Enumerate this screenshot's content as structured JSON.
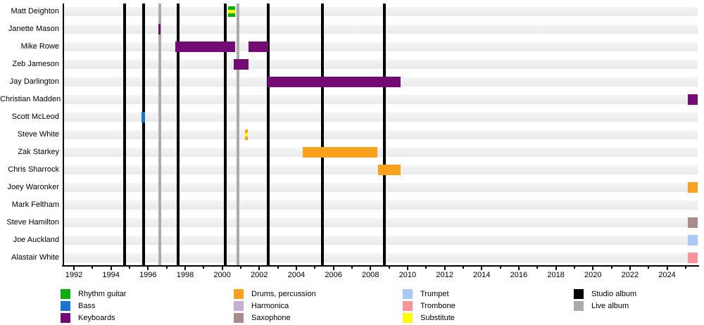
{
  "chart_data": {
    "type": "timeline",
    "description": "Band members timeline (gantt-style) showing each musician's tenure by instrument, with studio and live album release markers",
    "axis": {
      "start": 1991.43,
      "end": 2025.65
    },
    "x_tick_labels": [
      "1992",
      "1994",
      "1996",
      "1998",
      "2000",
      "2002",
      "2004",
      "2006",
      "2008",
      "2010",
      "2012",
      "2014",
      "2016",
      "2018",
      "2020",
      "2022",
      "2024"
    ],
    "members": [
      {
        "name": "Matt Deighton",
        "bars": [
          {
            "start": 2000.32,
            "end": 2000.7,
            "instrument": "rhythm_guitar",
            "substitute": true
          }
        ]
      },
      {
        "name": "Janette Mason",
        "bars": [
          {
            "start": 1996.56,
            "end": 1996.68,
            "instrument": "keyboards"
          }
        ]
      },
      {
        "name": "Mike Rowe",
        "bars": [
          {
            "start": 1997.45,
            "end": 2000.7,
            "instrument": "keyboards"
          },
          {
            "start": 2001.42,
            "end": 2002.48,
            "instrument": "keyboards"
          }
        ]
      },
      {
        "name": "Zeb Jameson",
        "bars": [
          {
            "start": 2000.63,
            "end": 2001.42,
            "instrument": "keyboards"
          }
        ]
      },
      {
        "name": "Jay Darlington",
        "bars": [
          {
            "start": 2002.45,
            "end": 2009.61,
            "instrument": "keyboards"
          }
        ]
      },
      {
        "name": "Christian Madden",
        "bars": [
          {
            "start": 2025.1,
            "end": 2025.65,
            "instrument": "keyboards"
          }
        ]
      },
      {
        "name": "Scott McLeod",
        "bars": [
          {
            "start": 1995.63,
            "end": 1995.83,
            "instrument": "bass"
          }
        ]
      },
      {
        "name": "Steve White",
        "bars": [
          {
            "start": 2001.22,
            "end": 2001.38,
            "instrument": "drums",
            "substitute": true
          }
        ]
      },
      {
        "name": "Zak Starkey",
        "bars": [
          {
            "start": 2004.33,
            "end": 2008.37,
            "instrument": "drums"
          }
        ]
      },
      {
        "name": "Chris Sharrock",
        "bars": [
          {
            "start": 2008.4,
            "end": 2009.61,
            "instrument": "drums"
          }
        ]
      },
      {
        "name": "Joey Waronker",
        "bars": [
          {
            "start": 2025.1,
            "end": 2025.65,
            "instrument": "drums"
          }
        ]
      },
      {
        "name": "Mark Feltham",
        "bars": []
      },
      {
        "name": "Steve Hamilton",
        "bars": [
          {
            "start": 2025.1,
            "end": 2025.65,
            "instrument": "saxophone"
          }
        ]
      },
      {
        "name": "Joe Auckland",
        "bars": [
          {
            "start": 2025.1,
            "end": 2025.65,
            "instrument": "trumpet"
          }
        ]
      },
      {
        "name": "Alastair White",
        "bars": [
          {
            "start": 2025.1,
            "end": 2025.65,
            "instrument": "trombone"
          }
        ]
      }
    ],
    "albums": {
      "studio": [
        1994.73,
        1995.76,
        1997.62,
        2000.16,
        2002.47,
        2005.4,
        2008.74
      ],
      "live": [
        1996.63,
        2000.84
      ]
    },
    "colors": {
      "rhythm_guitar": "#0CAD0C",
      "bass": "#1874CD",
      "keyboards": "#740B74",
      "drums": "#FAA21E",
      "harmonica": "#C8AED6",
      "saxophone": "#A98C8C",
      "trumpet": "#AAC9F5",
      "trombone": "#FB949A",
      "substitute": "#FFFF00",
      "studio_album": "#000000",
      "live_album": "#ABABAB"
    },
    "legend": {
      "position": "bottom",
      "columns": [
        {
          "items": [
            {
              "label": "Rhythm guitar",
              "color": "rhythm_guitar"
            },
            {
              "label": "Bass",
              "color": "bass"
            },
            {
              "label": "Keyboards",
              "color": "keyboards"
            }
          ]
        },
        {
          "items": [
            {
              "label": "Drums, percussion",
              "color": "drums"
            },
            {
              "label": "Harmonica",
              "color": "harmonica"
            },
            {
              "label": "Saxophone",
              "color": "saxophone"
            }
          ]
        },
        {
          "items": [
            {
              "label": "Trumpet",
              "color": "trumpet"
            },
            {
              "label": "Trombone",
              "color": "trombone"
            },
            {
              "label": "Substitute",
              "color": "substitute"
            }
          ]
        },
        {
          "items": [
            {
              "label": "Studio album",
              "color": "studio_album"
            },
            {
              "label": "Live album",
              "color": "live_album"
            }
          ]
        }
      ]
    }
  }
}
